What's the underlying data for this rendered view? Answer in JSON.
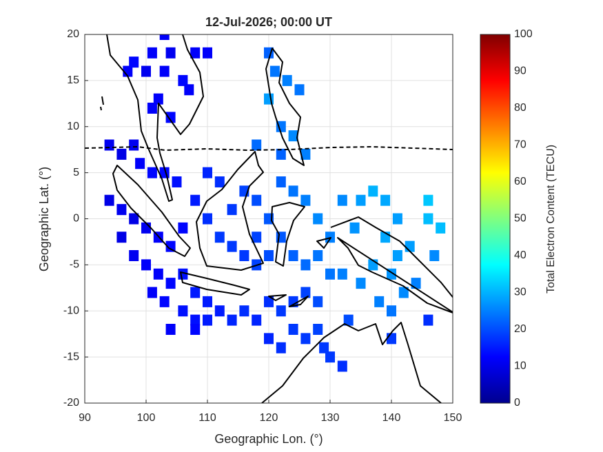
{
  "chart_data": {
    "type": "tilemap",
    "title": "12-Jul-2026; 00:00 UT",
    "x_label": "Geographic Lon. (°)",
    "y_label": "Geographic Lat. (°)",
    "colorbar_label": "Total Electron Content (TECU)",
    "xlim": [
      90,
      150
    ],
    "xticks": [
      90,
      100,
      110,
      120,
      130,
      140,
      150
    ],
    "ylim": [
      -20,
      20
    ],
    "yticks": [
      -20,
      -15,
      -10,
      -5,
      0,
      5,
      10,
      15,
      20
    ],
    "clim": [
      0,
      100
    ],
    "cticks": [
      0,
      10,
      20,
      30,
      40,
      50,
      60,
      70,
      80,
      90,
      100
    ],
    "colormap": "jet",
    "grid": true,
    "x": [
      97,
      98,
      100,
      101,
      103,
      104,
      106,
      107,
      108,
      103,
      110,
      101,
      104,
      102,
      120,
      121,
      123,
      125,
      120,
      122,
      124,
      126,
      118,
      122,
      94,
      96,
      98,
      99,
      101,
      103,
      105,
      94,
      96,
      98,
      100,
      102,
      104,
      96,
      98,
      100,
      102,
      104,
      101,
      103,
      106,
      108,
      110,
      112,
      106,
      108,
      110,
      112,
      114,
      116,
      118,
      120,
      122,
      124,
      126,
      128,
      106,
      108,
      110,
      104,
      108,
      110,
      112,
      114,
      116,
      118,
      114,
      116,
      118,
      120,
      122,
      124,
      126,
      118,
      120,
      122,
      124,
      126,
      128,
      130,
      128,
      130,
      132,
      132,
      134,
      135,
      137,
      139,
      141,
      139,
      141,
      143,
      137,
      140,
      142,
      144,
      147,
      146,
      148,
      146,
      135,
      138,
      140,
      120,
      122,
      124,
      126,
      128,
      130,
      132,
      129,
      133,
      146,
      140
    ],
    "y": [
      16,
      17,
      16,
      18,
      16,
      18,
      15,
      14,
      18,
      20,
      18,
      12,
      11,
      13,
      18,
      16,
      15,
      14,
      13,
      10,
      9,
      7,
      8,
      7,
      8,
      7,
      8,
      6,
      5,
      5,
      4,
      2,
      1,
      0,
      -1,
      -2,
      -3,
      -2,
      -4,
      -5,
      -6,
      -7,
      -8,
      -9,
      -1,
      2,
      5,
      4,
      -6,
      -8,
      -9,
      -10,
      -11,
      -10,
      -11,
      -9,
      -10,
      -9,
      -8,
      -9,
      -10,
      -11,
      -11,
      -12,
      -12,
      0,
      -2,
      -3,
      -4,
      -5,
      1,
      3,
      2,
      0,
      -2,
      -4,
      -5,
      -2,
      -4,
      4,
      3,
      2,
      0,
      -2,
      -4,
      -6,
      -6,
      2,
      -1,
      2,
      3,
      2,
      0,
      -2,
      -4,
      -3,
      -5,
      -6,
      -8,
      -7,
      -4,
      0,
      -1,
      2,
      -7,
      -9,
      -10,
      -13,
      -14,
      -12,
      -13,
      -12,
      -15,
      -16,
      -14,
      -11,
      -11,
      -13
    ],
    "values": [
      12,
      13,
      11,
      12,
      12,
      11,
      13,
      12,
      12,
      12,
      12,
      12,
      13,
      12,
      22,
      24,
      25,
      24,
      28,
      24,
      26,
      25,
      23,
      22,
      11,
      10,
      11,
      12,
      13,
      13,
      14,
      10,
      11,
      10,
      11,
      12,
      13,
      10,
      11,
      12,
      12,
      13,
      12,
      13,
      13,
      15,
      16,
      17,
      14,
      15,
      15,
      15,
      16,
      17,
      16,
      17,
      18,
      18,
      19,
      20,
      14,
      14,
      15,
      12,
      13,
      17,
      18,
      18,
      18,
      19,
      18,
      19,
      20,
      21,
      21,
      22,
      23,
      19,
      20,
      22,
      24,
      25,
      26,
      25,
      24,
      24,
      25,
      26,
      27,
      28,
      30,
      29,
      28,
      29,
      28,
      28,
      28,
      27,
      26,
      25,
      26,
      31,
      31,
      32,
      26,
      25,
      24,
      16,
      17,
      18,
      18,
      19,
      18,
      17,
      18,
      20,
      17,
      18
    ]
  }
}
